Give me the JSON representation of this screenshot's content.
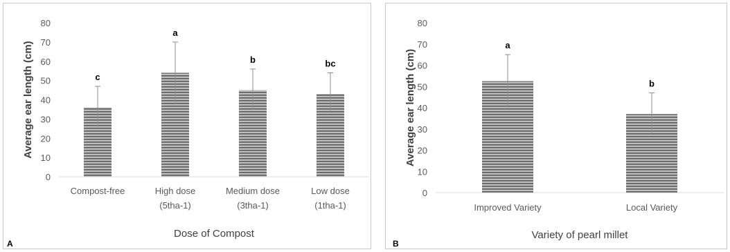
{
  "colors": {
    "bar_fill": "#bfbfbf",
    "bar_stripe": "#595959",
    "axis": "#d9d9d9",
    "error_bar": "#8c8c8c"
  },
  "chart_data": [
    {
      "type": "bar",
      "panel_label": "A",
      "title": "",
      "xlabel": "Dose of Compost",
      "ylabel": "Average ear length (cm)",
      "ylim": [
        0,
        80
      ],
      "yticks": [
        0,
        10,
        20,
        30,
        40,
        50,
        60,
        70,
        80
      ],
      "categories": [
        [
          "Compost-free"
        ],
        [
          "High dose",
          "(5tha-1)"
        ],
        [
          "Medium dose",
          "(3tha-1)"
        ],
        [
          "Low dose",
          "(1tha-1)"
        ]
      ],
      "values": [
        36,
        54,
        45,
        43
      ],
      "error_high": [
        47,
        70,
        56,
        54
      ],
      "error_low": [
        26,
        38,
        35,
        33
      ],
      "significance": [
        "c",
        "a",
        "b",
        "bc"
      ],
      "grid": false
    },
    {
      "type": "bar",
      "panel_label": "B",
      "title": "",
      "xlabel": "Variety of pearl millet",
      "ylabel": "Average ear length (cm)",
      "ylim": [
        0,
        80
      ],
      "yticks": [
        0,
        10,
        20,
        30,
        40,
        50,
        60,
        70,
        80
      ],
      "categories": [
        [
          "Improved Variety"
        ],
        [
          "Local Variety"
        ]
      ],
      "values": [
        52.5,
        37
      ],
      "error_high": [
        65,
        47
      ],
      "error_low": [
        40,
        27
      ],
      "significance": [
        "a",
        "b"
      ],
      "grid": false
    }
  ]
}
